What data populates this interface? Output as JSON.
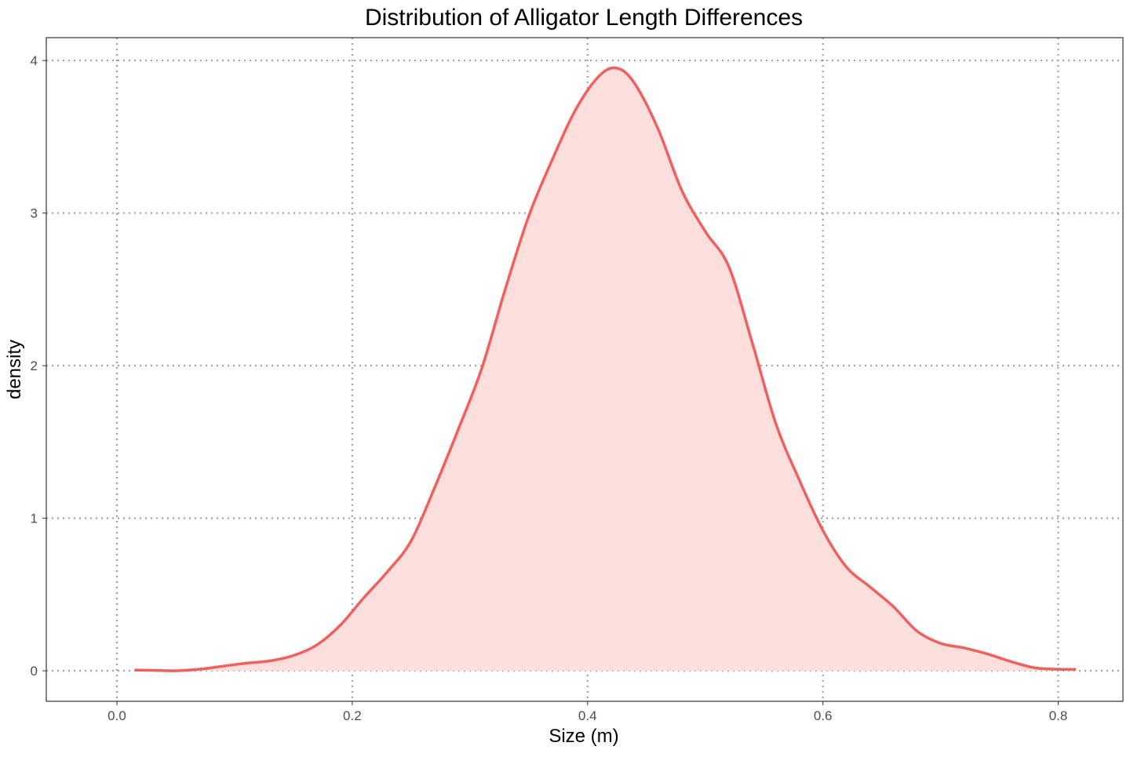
{
  "chart_data": {
    "type": "area",
    "title": "Distribution of Alligator Length Differences",
    "xlabel": "Size (m)",
    "ylabel": "density",
    "xlim": [
      -0.06,
      0.855
    ],
    "ylim": [
      -0.2,
      4.15
    ],
    "x_ticks": [
      0.0,
      0.2,
      0.4,
      0.6,
      0.8
    ],
    "x_tick_labels": [
      "0.0",
      "0.2",
      "0.4",
      "0.6",
      "0.8"
    ],
    "y_ticks": [
      0,
      1,
      2,
      3,
      4
    ],
    "y_tick_labels": [
      "0",
      "1",
      "2",
      "3",
      "4"
    ],
    "grid": true,
    "legend": "none",
    "colors": {
      "line": "#f0605e",
      "fill": "#fcdedd"
    },
    "series": [
      {
        "x": [
          0.015,
          0.03,
          0.05,
          0.07,
          0.09,
          0.11,
          0.13,
          0.15,
          0.17,
          0.19,
          0.21,
          0.23,
          0.25,
          0.27,
          0.29,
          0.31,
          0.33,
          0.35,
          0.37,
          0.39,
          0.41,
          0.425,
          0.44,
          0.46,
          0.48,
          0.5,
          0.52,
          0.54,
          0.56,
          0.58,
          0.6,
          0.62,
          0.64,
          0.66,
          0.68,
          0.7,
          0.72,
          0.74,
          0.76,
          0.78,
          0.8,
          0.815
        ],
        "values": [
          0.005,
          0.003,
          0.0,
          0.01,
          0.03,
          0.05,
          0.065,
          0.1,
          0.17,
          0.3,
          0.48,
          0.65,
          0.85,
          1.2,
          1.58,
          1.98,
          2.5,
          2.98,
          3.35,
          3.68,
          3.9,
          3.95,
          3.85,
          3.55,
          3.15,
          2.88,
          2.65,
          2.15,
          1.62,
          1.25,
          0.92,
          0.68,
          0.55,
          0.42,
          0.26,
          0.18,
          0.15,
          0.11,
          0.06,
          0.02,
          0.01,
          0.01
        ]
      }
    ]
  }
}
